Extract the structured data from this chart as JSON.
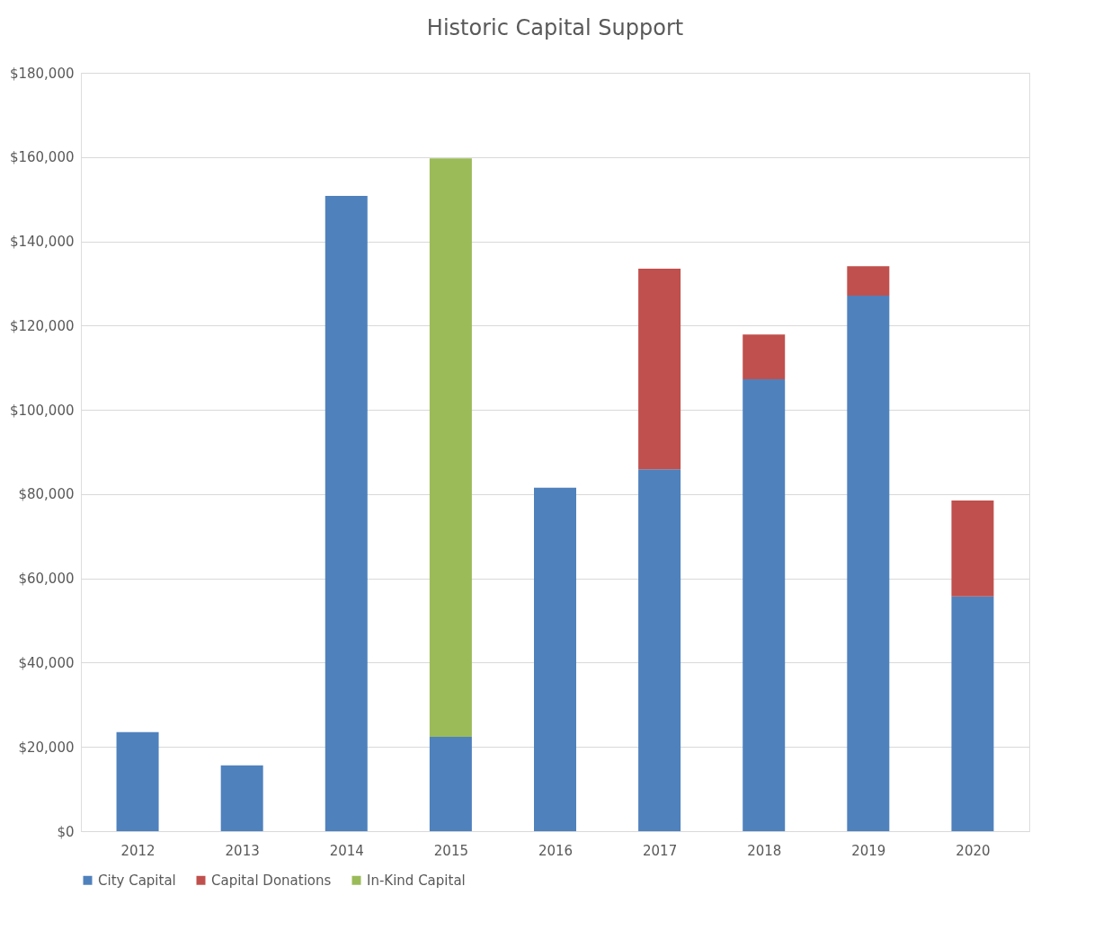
{
  "chart_data": {
    "type": "bar",
    "title": "Historic Capital Support",
    "stacked": true,
    "categories": [
      "2012",
      "2013",
      "2014",
      "2015",
      "2016",
      "2017",
      "2018",
      "2019",
      "2020"
    ],
    "series": [
      {
        "name": "City Capital",
        "color": "#4f81bd",
        "values": [
          23500,
          15600,
          150800,
          22400,
          81500,
          85900,
          107300,
          127100,
          55700
        ]
      },
      {
        "name": "Capital Donations",
        "color": "#c0504d",
        "values": [
          null,
          null,
          null,
          null,
          null,
          47600,
          10600,
          7000,
          22800
        ]
      },
      {
        "name": "In-Kind Capital",
        "color": "#9bbb59",
        "values": [
          null,
          null,
          null,
          137300,
          null,
          null,
          null,
          null,
          null
        ]
      }
    ],
    "ylim": [
      0,
      180000
    ],
    "yticks": [
      {
        "value": 0,
        "label": "$0"
      },
      {
        "value": 20000,
        "label": "$20,000"
      },
      {
        "value": 40000,
        "label": "$40,000"
      },
      {
        "value": 60000,
        "label": "$60,000"
      },
      {
        "value": 80000,
        "label": "$80,000"
      },
      {
        "value": 100000,
        "label": "$100,000"
      },
      {
        "value": 120000,
        "label": "$120,000"
      },
      {
        "value": 140000,
        "label": "$140,000"
      },
      {
        "value": 160000,
        "label": "$160,000"
      },
      {
        "value": 180000,
        "label": "$180,000"
      }
    ],
    "grid": "y",
    "legend": "bottom"
  }
}
